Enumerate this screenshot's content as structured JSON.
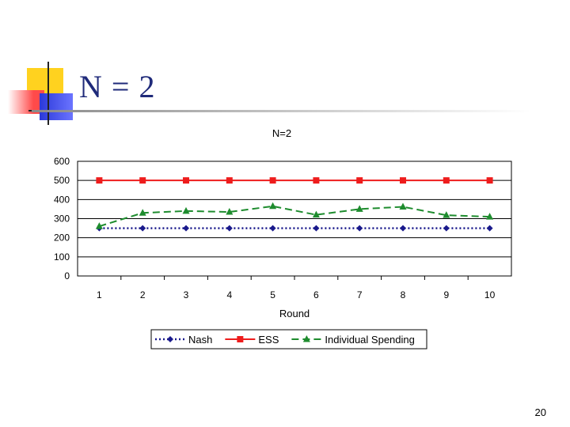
{
  "slide": {
    "title": "N = 2",
    "page_number": "20"
  },
  "colors": {
    "accent_yellow": "#ffd21f",
    "accent_red": "#ff4a4a",
    "accent_blue": "#2b39d9",
    "title_text": "#1f2a7a"
  },
  "chart_data": {
    "type": "line",
    "title": "N=2",
    "xlabel": "Round",
    "ylabel": "",
    "categories": [
      "1",
      "2",
      "3",
      "4",
      "5",
      "6",
      "7",
      "8",
      "9",
      "10"
    ],
    "ylim": [
      0,
      600
    ],
    "yticks": [
      0,
      100,
      200,
      300,
      400,
      500,
      600
    ],
    "grid": true,
    "legend_position": "bottom",
    "series": [
      {
        "name": "Nash",
        "color": "#1a1a8c",
        "line_style": "dotted",
        "marker": "diamond",
        "values": [
          250,
          250,
          250,
          250,
          250,
          250,
          250,
          250,
          250,
          250
        ]
      },
      {
        "name": "ESS",
        "color": "#ee1c1c",
        "line_style": "solid",
        "marker": "square",
        "values": [
          500,
          500,
          500,
          500,
          500,
          500,
          500,
          500,
          500,
          500
        ]
      },
      {
        "name": "Individual Spending",
        "color": "#1e8c2e",
        "line_style": "dashed",
        "marker": "triangle",
        "values": [
          260,
          330,
          340,
          335,
          365,
          320,
          350,
          362,
          318,
          310
        ]
      }
    ]
  }
}
